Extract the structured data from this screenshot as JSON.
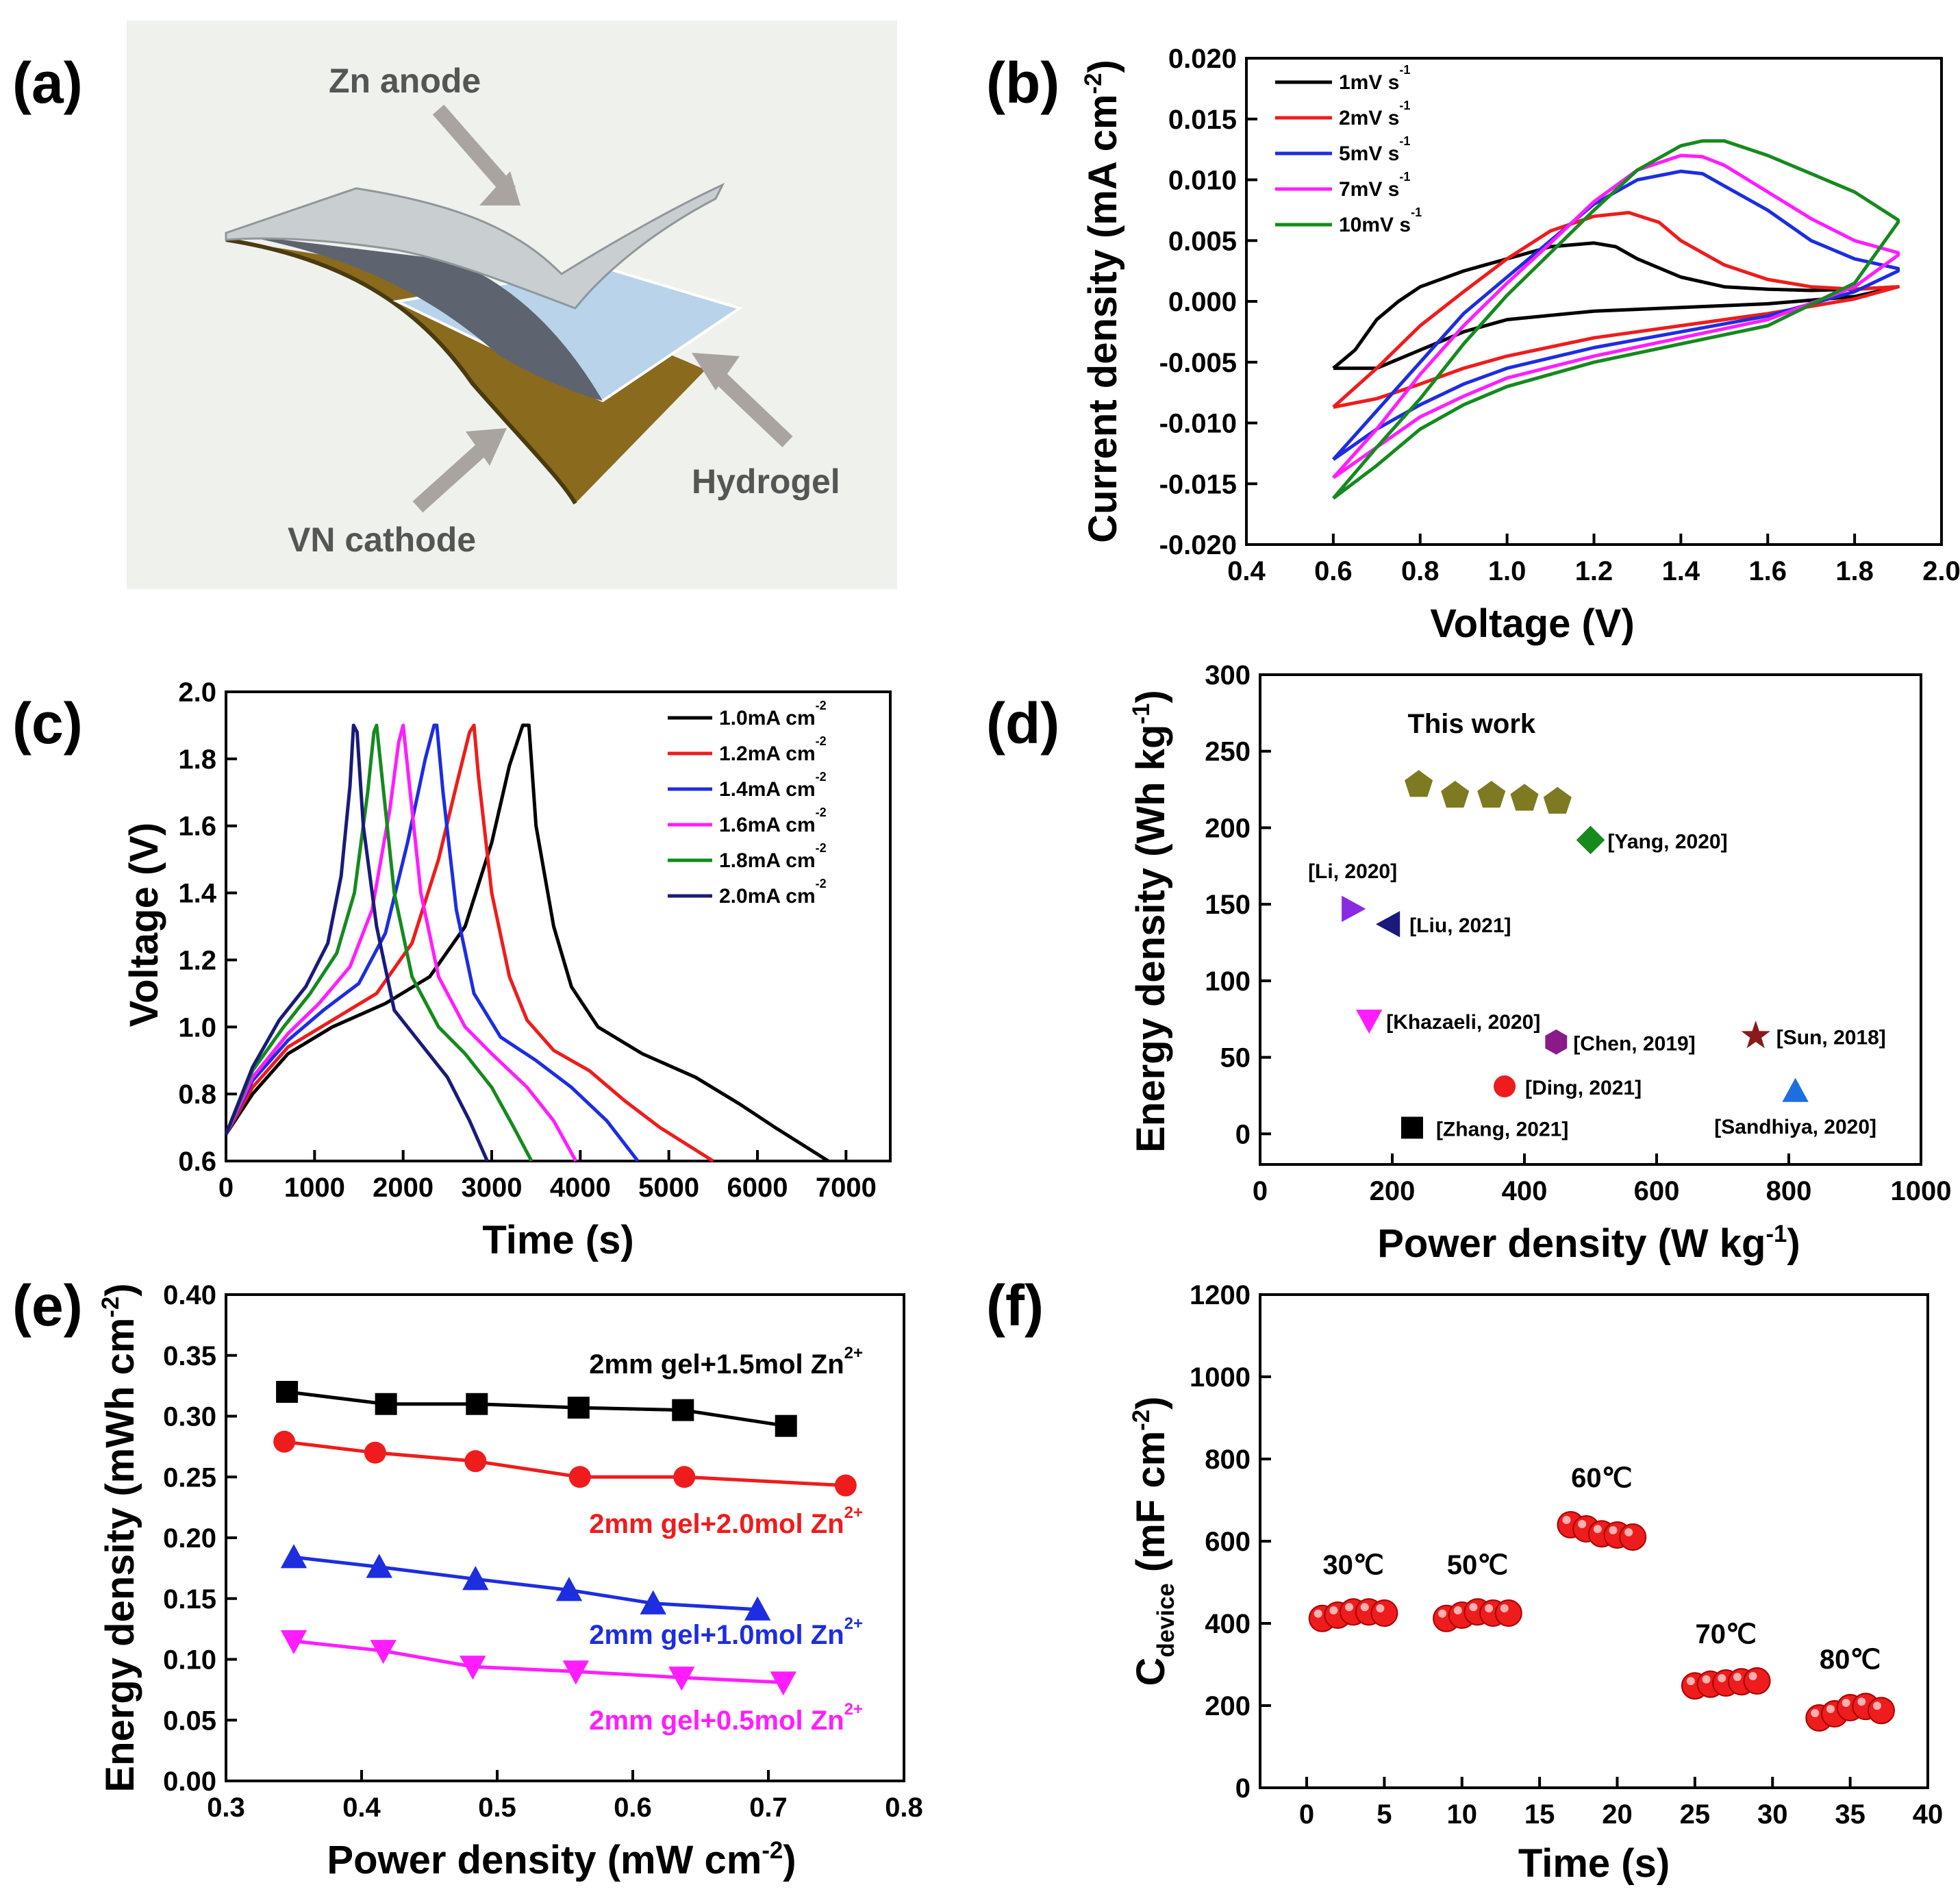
{
  "panel_labels": [
    "(a)",
    "(b)",
    "(c)",
    "(d)",
    "(e)",
    "(f)"
  ],
  "schematic": {
    "labels": [
      "Zn anode",
      "Hydrogel",
      "VN cathode"
    ],
    "colors": {
      "zn": "#c9cfd1",
      "hydrogel": "#b8d3ea",
      "cathode": "#8a6a1c",
      "arrow": "#aaa4a1",
      "bg": "#eff1ed"
    }
  },
  "chart_data": [
    {
      "panel": "b",
      "type": "line",
      "xlabel": "Voltage (V)",
      "ylabel_main": "Current density (mA cm",
      "ylabel_sup": "-2",
      "ylabel_end": ")",
      "xlim": [
        0.4,
        2.0
      ],
      "ylim": [
        -0.02,
        0.02
      ],
      "xticks": [
        0.4,
        0.6,
        0.8,
        1.0,
        1.2,
        1.4,
        1.6,
        1.8,
        2.0
      ],
      "xtick_labels": [
        "0.4",
        "0.6",
        "0.8",
        "1.0",
        "1.2",
        "1.4",
        "1.6",
        "1.8",
        "2.0"
      ],
      "yticks": [
        -0.02,
        -0.015,
        -0.01,
        -0.005,
        0,
        0.005,
        0.01,
        0.015,
        0.02
      ],
      "ytick_labels": [
        "-0.020",
        "-0.015",
        "-0.010",
        "-0.005",
        "0.000",
        "0.005",
        "0.010",
        "0.015",
        "0.020"
      ],
      "series": [
        {
          "name": "1mV s",
          "sup": "-1",
          "color": "#000000",
          "x": [
            0.6,
            0.65,
            0.7,
            0.75,
            0.8,
            0.9,
            1.0,
            1.1,
            1.2,
            1.25,
            1.3,
            1.4,
            1.5,
            1.6,
            1.7,
            1.8,
            1.9,
            1.9,
            1.8,
            1.6,
            1.4,
            1.2,
            1.0,
            0.9,
            0.8,
            0.7,
            0.6
          ],
          "y": [
            -0.0055,
            -0.004,
            -0.0015,
            0.0,
            0.0012,
            0.0025,
            0.0035,
            0.0045,
            0.0048,
            0.0045,
            0.0035,
            0.002,
            0.0012,
            0.001,
            0.0009,
            0.001,
            0.0012,
            0.0012,
            0.0004,
            -0.0002,
            -0.0005,
            -0.0008,
            -0.0015,
            -0.0025,
            -0.004,
            -0.0055,
            -0.0055
          ]
        },
        {
          "name": "2mV s",
          "sup": "-1",
          "color": "#ee1c1c",
          "x": [
            0.6,
            0.7,
            0.8,
            0.9,
            1.0,
            1.1,
            1.2,
            1.28,
            1.35,
            1.4,
            1.5,
            1.6,
            1.7,
            1.8,
            1.9,
            1.9,
            1.8,
            1.6,
            1.4,
            1.2,
            1.0,
            0.9,
            0.8,
            0.7,
            0.6
          ],
          "y": [
            -0.0087,
            -0.0055,
            -0.002,
            0.0008,
            0.0035,
            0.0058,
            0.007,
            0.0073,
            0.0065,
            0.005,
            0.003,
            0.0018,
            0.0012,
            0.001,
            0.0012,
            0.0012,
            0.0002,
            -0.001,
            -0.002,
            -0.003,
            -0.0045,
            -0.0055,
            -0.0068,
            -0.008,
            -0.0087
          ]
        },
        {
          "name": "5mV s",
          "sup": "-1",
          "color": "#1d2de0",
          "x": [
            0.6,
            0.7,
            0.8,
            0.9,
            1.0,
            1.1,
            1.2,
            1.3,
            1.4,
            1.45,
            1.5,
            1.6,
            1.7,
            1.8,
            1.9,
            1.9,
            1.8,
            1.6,
            1.4,
            1.2,
            1.0,
            0.9,
            0.8,
            0.7,
            0.6
          ],
          "y": [
            -0.013,
            -0.009,
            -0.005,
            -0.001,
            0.002,
            0.005,
            0.008,
            0.01,
            0.0107,
            0.0105,
            0.0095,
            0.0075,
            0.005,
            0.0035,
            0.0027,
            0.0025,
            0.0008,
            -0.0012,
            -0.0025,
            -0.0038,
            -0.0055,
            -0.0068,
            -0.0085,
            -0.0105,
            -0.013
          ]
        },
        {
          "name": "7mV s",
          "sup": "-1",
          "color": "#ff1dff",
          "x": [
            0.6,
            0.7,
            0.8,
            0.9,
            1.0,
            1.1,
            1.2,
            1.3,
            1.4,
            1.45,
            1.5,
            1.6,
            1.7,
            1.8,
            1.9,
            1.9,
            1.8,
            1.6,
            1.4,
            1.2,
            1.0,
            0.9,
            0.8,
            0.7,
            0.6
          ],
          "y": [
            -0.0145,
            -0.0105,
            -0.006,
            -0.002,
            0.0015,
            0.0048,
            0.0082,
            0.0108,
            0.012,
            0.0119,
            0.0112,
            0.009,
            0.0068,
            0.005,
            0.004,
            0.0038,
            0.0012,
            -0.0015,
            -0.003,
            -0.0045,
            -0.0063,
            -0.0078,
            -0.0095,
            -0.012,
            -0.0145
          ]
        },
        {
          "name": "10mV s",
          "sup": "-1",
          "color": "#158a1e",
          "x": [
            0.6,
            0.7,
            0.8,
            0.9,
            1.0,
            1.1,
            1.2,
            1.3,
            1.4,
            1.45,
            1.5,
            1.6,
            1.7,
            1.8,
            1.9,
            1.9,
            1.8,
            1.6,
            1.4,
            1.2,
            1.0,
            0.9,
            0.8,
            0.7,
            0.6
          ],
          "y": [
            -0.0162,
            -0.012,
            -0.008,
            -0.0035,
            0.0005,
            0.004,
            0.0075,
            0.0108,
            0.0128,
            0.0132,
            0.0132,
            0.012,
            0.0105,
            0.009,
            0.0067,
            0.0065,
            0.0015,
            -0.002,
            -0.0035,
            -0.005,
            -0.007,
            -0.0085,
            -0.0105,
            -0.0135,
            -0.0162
          ]
        }
      ]
    },
    {
      "panel": "c",
      "type": "line",
      "xlabel": "Time (s)",
      "ylabel": "Voltage (V)",
      "xlim": [
        0,
        7500
      ],
      "ylim": [
        0.6,
        2.0
      ],
      "xticks": [
        0,
        1000,
        2000,
        3000,
        4000,
        5000,
        6000,
        7000
      ],
      "xtick_labels": [
        "0",
        "1000",
        "2000",
        "3000",
        "4000",
        "5000",
        "6000",
        "7000"
      ],
      "yticks": [
        0.6,
        0.8,
        1.0,
        1.2,
        1.4,
        1.6,
        1.8,
        2.0
      ],
      "ytick_labels": [
        "0.6",
        "0.8",
        "1.0",
        "1.2",
        "1.4",
        "1.6",
        "1.8",
        "2.0"
      ],
      "series": [
        {
          "name": "1.0mA cm",
          "sup": "-2",
          "color": "#000000",
          "x": [
            0,
            300,
            700,
            1200,
            1800,
            2300,
            2700,
            3000,
            3200,
            3350,
            3420,
            3500,
            3700,
            3900,
            4200,
            4700,
            5300,
            5800,
            6200,
            6800
          ],
          "y": [
            0.68,
            0.8,
            0.92,
            1.0,
            1.07,
            1.15,
            1.3,
            1.55,
            1.78,
            1.9,
            1.9,
            1.6,
            1.3,
            1.12,
            1.0,
            0.92,
            0.85,
            0.77,
            0.7,
            0.6
          ]
        },
        {
          "name": "1.2mA cm",
          "sup": "-2",
          "color": "#ee1c1c",
          "x": [
            0,
            300,
            700,
            1200,
            1700,
            2100,
            2400,
            2600,
            2750,
            2800,
            2850,
            3000,
            3200,
            3400,
            3700,
            4100,
            4500,
            4900,
            5500
          ],
          "y": [
            0.68,
            0.82,
            0.94,
            1.02,
            1.1,
            1.25,
            1.5,
            1.72,
            1.88,
            1.9,
            1.75,
            1.4,
            1.15,
            1.02,
            0.93,
            0.87,
            0.78,
            0.7,
            0.6
          ]
        },
        {
          "name": "1.4mA cm",
          "sup": "-2",
          "color": "#1d2de0",
          "x": [
            0,
            300,
            700,
            1100,
            1500,
            1800,
            2050,
            2250,
            2350,
            2380,
            2450,
            2600,
            2800,
            3100,
            3500,
            3900,
            4300,
            4650
          ],
          "y": [
            0.68,
            0.84,
            0.96,
            1.05,
            1.13,
            1.28,
            1.55,
            1.8,
            1.9,
            1.9,
            1.7,
            1.35,
            1.1,
            0.97,
            0.9,
            0.82,
            0.72,
            0.6
          ]
        },
        {
          "name": "1.6mA cm",
          "sup": "-2",
          "color": "#ff1dff",
          "x": [
            0,
            300,
            700,
            1050,
            1400,
            1650,
            1850,
            1950,
            2000,
            2060,
            2200,
            2400,
            2700,
            3000,
            3400,
            3700,
            3950
          ],
          "y": [
            0.68,
            0.85,
            0.98,
            1.07,
            1.18,
            1.35,
            1.65,
            1.85,
            1.9,
            1.75,
            1.4,
            1.15,
            1.0,
            0.92,
            0.82,
            0.72,
            0.6
          ]
        },
        {
          "name": "1.8mA cm",
          "sup": "-2",
          "color": "#158a1e",
          "x": [
            0,
            300,
            650,
            950,
            1250,
            1450,
            1600,
            1670,
            1700,
            1780,
            1900,
            2100,
            2400,
            2700,
            3000,
            3250,
            3450
          ],
          "y": [
            0.68,
            0.87,
            1.0,
            1.1,
            1.22,
            1.4,
            1.7,
            1.88,
            1.9,
            1.7,
            1.4,
            1.15,
            1.0,
            0.92,
            0.82,
            0.7,
            0.6
          ]
        },
        {
          "name": "2.0mA cm",
          "sup": "-2",
          "color": "#1a1a7a",
          "x": [
            0,
            300,
            600,
            900,
            1150,
            1300,
            1400,
            1440,
            1480,
            1550,
            1700,
            1900,
            2200,
            2500,
            2750,
            2950
          ],
          "y": [
            0.68,
            0.88,
            1.02,
            1.12,
            1.25,
            1.45,
            1.72,
            1.9,
            1.88,
            1.6,
            1.3,
            1.05,
            0.95,
            0.85,
            0.72,
            0.6
          ]
        }
      ]
    },
    {
      "panel": "d",
      "type": "scatter",
      "xlabel_main": "Power density (W kg",
      "xlabel_sup": "-1",
      "xlabel_end": ")",
      "ylabel_main": "Energy density (Wh kg",
      "ylabel_sup": "-1",
      "ylabel_end": ")",
      "xlim": [
        0,
        1000
      ],
      "ylim": [
        -20,
        300
      ],
      "xticks": [
        0,
        200,
        400,
        600,
        800,
        1000
      ],
      "xtick_labels": [
        "0",
        "200",
        "400",
        "600",
        "800",
        "1000"
      ],
      "yticks": [
        0,
        50,
        100,
        150,
        200,
        250,
        300
      ],
      "ytick_labels": [
        "0",
        "50",
        "100",
        "150",
        "200",
        "250",
        "300"
      ],
      "this_work": {
        "label": "This work",
        "color": "#7d7a22",
        "x": [
          240,
          295,
          350,
          400,
          450
        ],
        "y": [
          228,
          221,
          221,
          219,
          217
        ]
      },
      "points": [
        {
          "label": "[Yang, 2020]",
          "x": 500,
          "y": 192,
          "marker": "diamond",
          "color": "#178a1e"
        },
        {
          "label": "[Li, 2020]",
          "x": 140,
          "y": 147,
          "marker": "tri-right",
          "color": "#8a2be2"
        },
        {
          "label": "[Liu, 2021]",
          "x": 195,
          "y": 137,
          "marker": "tri-left",
          "color": "#1a1a7a"
        },
        {
          "label": "[Khazaeli, 2020]",
          "x": 165,
          "y": 74,
          "marker": "tri-down",
          "color": "#ff1dff"
        },
        {
          "label": "[Chen, 2019]",
          "x": 448,
          "y": 60,
          "marker": "hexagon",
          "color": "#8a1a8a"
        },
        {
          "label": "[Sun, 2018]",
          "x": 750,
          "y": 64,
          "marker": "star",
          "color": "#8b1a1a"
        },
        {
          "label": "[Ding, 2021]",
          "x": 370,
          "y": 31,
          "marker": "circle",
          "color": "#ee1c1c"
        },
        {
          "label": "[Sandhiya, 2020]",
          "x": 810,
          "y": 28,
          "marker": "tri-up",
          "color": "#1d6fe0"
        },
        {
          "label": "[Zhang, 2021]",
          "x": 230,
          "y": 4,
          "marker": "square",
          "color": "#000000"
        }
      ]
    },
    {
      "panel": "e",
      "type": "line",
      "xlabel_main": "Power density (mW cm",
      "xlabel_sup": "-2",
      "xlabel_end": ")",
      "ylabel_main": "Energy density (mWh cm",
      "ylabel_sup": "-2",
      "ylabel_end": ")",
      "xlim": [
        0.3,
        0.8
      ],
      "ylim": [
        0.0,
        0.4
      ],
      "xticks": [
        0.3,
        0.4,
        0.5,
        0.6,
        0.7,
        0.8
      ],
      "xtick_labels": [
        "0.3",
        "0.4",
        "0.5",
        "0.6",
        "0.7",
        "0.8"
      ],
      "yticks": [
        0.0,
        0.05,
        0.1,
        0.15,
        0.2,
        0.25,
        0.3,
        0.35,
        0.4
      ],
      "ytick_labels": [
        "0.00",
        "0.05",
        "0.10",
        "0.15",
        "0.20",
        "0.25",
        "0.30",
        "0.35",
        "0.40"
      ],
      "series": [
        {
          "name": "2mm gel+1.5mol Zn",
          "sup": "2+",
          "color": "#000000",
          "marker": "square",
          "x": [
            0.345,
            0.418,
            0.485,
            0.56,
            0.637,
            0.713
          ],
          "y": [
            0.32,
            0.31,
            0.31,
            0.307,
            0.305,
            0.292
          ]
        },
        {
          "name": "2mm gel+2.0mol Zn",
          "sup": "2+",
          "color": "#ee1c1c",
          "marker": "circle",
          "x": [
            0.343,
            0.41,
            0.484,
            0.561,
            0.638,
            0.757
          ],
          "y": [
            0.279,
            0.27,
            0.263,
            0.25,
            0.25,
            0.243
          ]
        },
        {
          "name": "2mm gel+1.0mol Zn",
          "sup": "2+",
          "color": "#1d2de0",
          "marker": "tri-up",
          "x": [
            0.35,
            0.413,
            0.484,
            0.553,
            0.615,
            0.692
          ],
          "y": [
            0.184,
            0.176,
            0.166,
            0.157,
            0.146,
            0.141
          ]
        },
        {
          "name": "2mm gel+0.5mol Zn",
          "sup": "2+",
          "color": "#ff1dff",
          "marker": "tri-down",
          "x": [
            0.35,
            0.416,
            0.482,
            0.558,
            0.636,
            0.711
          ],
          "y": [
            0.115,
            0.107,
            0.094,
            0.09,
            0.085,
            0.081
          ]
        }
      ]
    },
    {
      "panel": "f",
      "type": "scatter",
      "xlabel": "Time (s)",
      "ylabel_main": "C",
      "ylabel_sub": "device",
      "ylabel_mid": " (mF cm",
      "ylabel_sup": "-2",
      "ylabel_end": ")",
      "xlim": [
        -3,
        40
      ],
      "ylim": [
        0,
        1200
      ],
      "xticks": [
        0,
        5,
        10,
        15,
        20,
        25,
        30,
        35,
        40
      ],
      "xtick_labels": [
        "0",
        "5",
        "10",
        "15",
        "20",
        "25",
        "30",
        "35",
        "40"
      ],
      "yticks": [
        0,
        200,
        400,
        600,
        800,
        1000,
        1200
      ],
      "ytick_labels": [
        "0",
        "200",
        "400",
        "600",
        "800",
        "1000",
        "1200"
      ],
      "color": "#ee1c1c",
      "groups": [
        {
          "label": "30℃",
          "x": [
            1,
            2,
            3,
            4,
            5
          ],
          "y": [
            412,
            420,
            428,
            428,
            425
          ]
        },
        {
          "label": "50℃",
          "x": [
            9,
            10,
            11,
            12,
            13
          ],
          "y": [
            412,
            420,
            428,
            425,
            425
          ]
        },
        {
          "label": "60℃",
          "x": [
            17,
            18,
            19,
            20,
            21
          ],
          "y": [
            640,
            630,
            618,
            615,
            610
          ]
        },
        {
          "label": "70℃",
          "x": [
            25,
            26,
            27,
            28,
            29
          ],
          "y": [
            248,
            252,
            255,
            258,
            260
          ]
        },
        {
          "label": "80℃",
          "x": [
            33,
            34,
            35,
            36,
            37
          ],
          "y": [
            170,
            180,
            195,
            198,
            188
          ]
        }
      ]
    }
  ]
}
